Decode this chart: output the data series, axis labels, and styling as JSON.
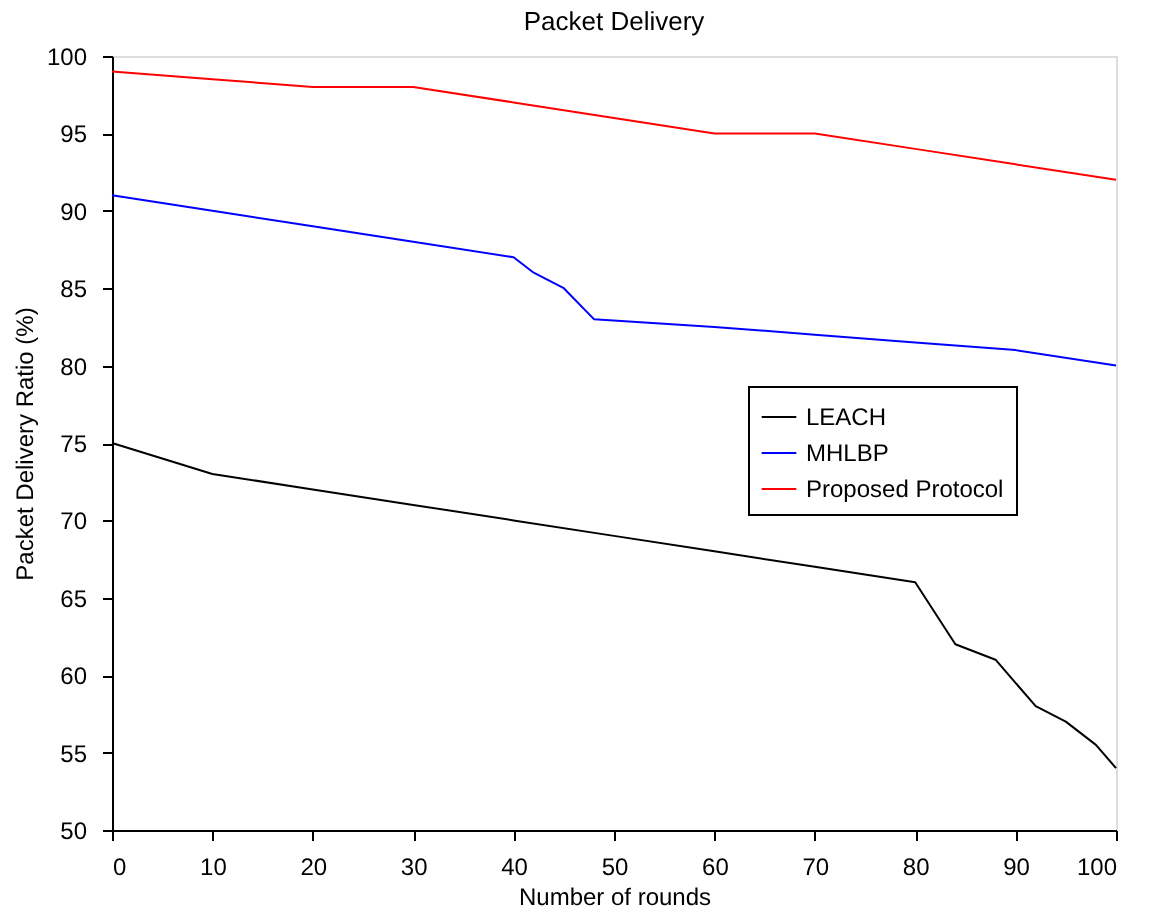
{
  "chart_data": {
    "type": "line",
    "title": "Packet Delivery",
    "xlabel": "Number of rounds",
    "ylabel": "Packet Delivery Ratio (%)",
    "xlim": [
      0,
      100
    ],
    "xticks": [
      0,
      10,
      20,
      30,
      40,
      50,
      60,
      70,
      80,
      90,
      100
    ],
    "ylim": [
      50,
      100
    ],
    "yticks": [
      50,
      55,
      60,
      65,
      70,
      75,
      80,
      85,
      90,
      95,
      100
    ],
    "grid": false,
    "legend": "right",
    "marker": "none",
    "line_style": "solid",
    "series": [
      {
        "name": "LEACH",
        "color": "#000000",
        "x": [
          0,
          10,
          20,
          30,
          40,
          50,
          60,
          70,
          80,
          82,
          84,
          88,
          92,
          95,
          98,
          100
        ],
        "values": [
          75,
          73,
          72,
          71,
          70,
          69,
          68,
          67,
          66,
          64,
          62,
          61,
          58,
          57,
          55.5,
          54
        ]
      },
      {
        "name": "MHLBP",
        "color": "#0000ff",
        "x": [
          0,
          10,
          20,
          30,
          40,
          42,
          45,
          48,
          60,
          70,
          80,
          90,
          100
        ],
        "values": [
          91,
          90,
          89,
          88,
          87,
          86,
          85,
          83,
          82.5,
          82,
          81.5,
          81,
          80
        ]
      },
      {
        "name": "Proposed Protocol",
        "color": "#ff0000",
        "x": [
          0,
          10,
          20,
          30,
          40,
          50,
          60,
          70,
          80,
          90,
          100
        ],
        "values": [
          99,
          98.5,
          98,
          98,
          97,
          96,
          95,
          95,
          94,
          93,
          92
        ]
      }
    ]
  }
}
